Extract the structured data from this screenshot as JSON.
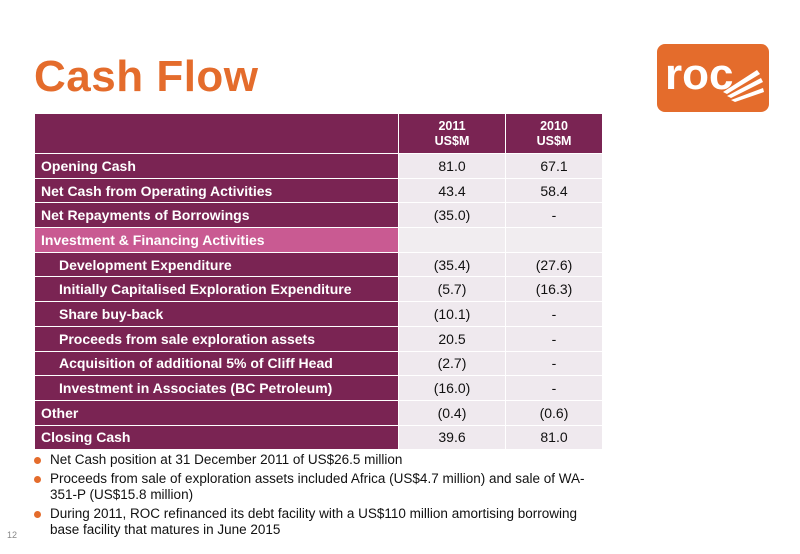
{
  "title": "Cash Flow",
  "logo": {
    "text": "roc",
    "color": "#e46c2c"
  },
  "page_number": "12",
  "table": {
    "columns": [
      {
        "year": "2011",
        "unit": "US$M"
      },
      {
        "year": "2010",
        "unit": "US$M"
      }
    ],
    "rows": [
      {
        "label": "Opening Cash",
        "v2011": "81.0",
        "v2010": "67.1"
      },
      {
        "label": "Net Cash from Operating Activities",
        "v2011": "43.4",
        "v2010": "58.4"
      },
      {
        "label": "Net Repayments of Borrowings",
        "v2011": "(35.0)",
        "v2010": "-"
      },
      {
        "label": "Investment & Financing Activities",
        "v2011": "",
        "v2010": ""
      },
      {
        "label": "Development Expenditure",
        "v2011": "(35.4)",
        "v2010": "(27.6)"
      },
      {
        "label": "Initially Capitalised Exploration Expenditure",
        "v2011": "(5.7)",
        "v2010": "(16.3)"
      },
      {
        "label": "Share buy-back",
        "v2011": "(10.1)",
        "v2010": "-"
      },
      {
        "label": "Proceeds from sale exploration assets",
        "v2011": "20.5",
        "v2010": "-"
      },
      {
        "label": "Acquisition of additional 5% of Cliff Head",
        "v2011": "(2.7)",
        "v2010": "-"
      },
      {
        "label": "Investment  in Associates (BC Petroleum)",
        "v2011": "(16.0)",
        "v2010": "-"
      },
      {
        "label": "Other",
        "v2011": "(0.4)",
        "v2010": "(0.6)"
      },
      {
        "label": "Closing Cash",
        "v2011": "39.6",
        "v2010": "81.0"
      }
    ]
  },
  "bullets": [
    "Net Cash position at 31 December 2011 of US$26.5 million",
    "Proceeds from sale of exploration assets included Africa (US$4.7 million) and sale of WA-351-P (US$15.8 million)",
    "During 2011, ROC refinanced its debt facility with a US$110 million amortising borrowing base facility that matures in June 2015"
  ]
}
